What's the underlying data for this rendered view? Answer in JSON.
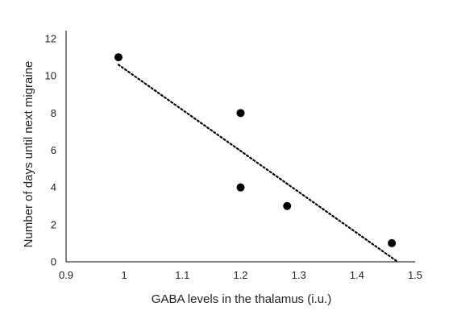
{
  "chart_data": {
    "type": "scatter",
    "title": "",
    "xlabel": "GABA levels in the thalamus (i.u.)",
    "ylabel": "Number of days until next migraine",
    "xlim": [
      0.9,
      1.5
    ],
    "ylim": [
      0,
      12
    ],
    "x_ticks": [
      0.9,
      1,
      1.1,
      1.2,
      1.3,
      1.4,
      1.5
    ],
    "x_tick_labels": [
      "0.9",
      "1",
      "1.1",
      "1.2",
      "1.3",
      "1.4",
      "1.5"
    ],
    "y_ticks": [
      0,
      2,
      4,
      6,
      8,
      10,
      12
    ],
    "y_tick_labels": [
      "0",
      "2",
      "4",
      "6",
      "8",
      "10",
      "12"
    ],
    "grid": false,
    "legend": "none",
    "series": [
      {
        "points": [
          {
            "x": 0.99,
            "y": 11
          },
          {
            "x": 1.2,
            "y": 8
          },
          {
            "x": 1.2,
            "y": 4
          },
          {
            "x": 1.28,
            "y": 3
          },
          {
            "x": 1.46,
            "y": 1
          }
        ],
        "color": "#000000"
      }
    ],
    "trendline": {
      "style": "dotted",
      "color": "#000000",
      "from": {
        "x": 0.99,
        "y": 10.6
      },
      "to": {
        "x": 1.47,
        "y": 0
      }
    }
  }
}
